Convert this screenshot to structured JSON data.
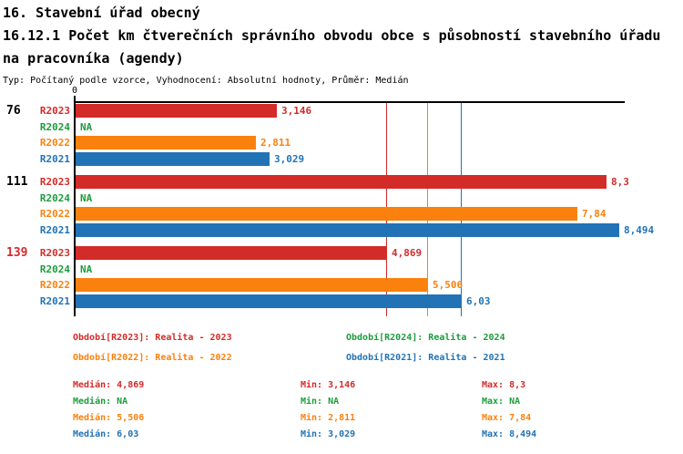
{
  "header": {
    "title_line1": "16. Stavební úřad obecný",
    "title_line2": "16.12.1 Počet km čtverečních správního obvodu obce s působností stavebního úřadu na pracovníka (agendy)",
    "subtitle": "Typ: Počítaný podle vzorce, Vyhodnocení: Absolutní hodnoty, Průměr: Medián"
  },
  "chart_data": {
    "type": "bar",
    "orientation": "horizontal",
    "title": "16.12.1 Počet km čtverečních správního obvodu obce s působností stavebního úřadu na pracovníka (agendy)",
    "x_axis": {
      "zero_label": "0",
      "min": 0,
      "max": 8.58,
      "gridlines": false
    },
    "series_order": [
      "R2023",
      "R2024",
      "R2022",
      "R2021"
    ],
    "series_colors": {
      "R2023": "#d32b28",
      "R2024": "#1c9c3c",
      "R2022": "#fa810e",
      "R2021": "#2273b5"
    },
    "na_text": "NA",
    "groups": [
      {
        "label": "76",
        "label_color": "#000000",
        "bars": [
          {
            "series": "R2023",
            "value": 3.146,
            "display": "3,146"
          },
          {
            "series": "R2024",
            "value": null,
            "display": "NA"
          },
          {
            "series": "R2022",
            "value": 2.811,
            "display": "2,811"
          },
          {
            "series": "R2021",
            "value": 3.029,
            "display": "3,029"
          }
        ]
      },
      {
        "label": "111",
        "label_color": "#000000",
        "bars": [
          {
            "series": "R2023",
            "value": 8.3,
            "display": "8,3"
          },
          {
            "series": "R2024",
            "value": null,
            "display": "NA"
          },
          {
            "series": "R2022",
            "value": 7.84,
            "display": "7,84"
          },
          {
            "series": "R2021",
            "value": 8.494,
            "display": "8,494"
          }
        ]
      },
      {
        "label": "139",
        "label_color": "#d32b28",
        "bars": [
          {
            "series": "R2023",
            "value": 4.869,
            "display": "4,869"
          },
          {
            "series": "R2024",
            "value": null,
            "display": "NA"
          },
          {
            "series": "R2022",
            "value": 5.506,
            "display": "5,506"
          },
          {
            "series": "R2021",
            "value": 6.03,
            "display": "6,03"
          }
        ]
      }
    ],
    "median_lines": [
      {
        "series": "R2023",
        "value": 4.869
      },
      {
        "series": "R2022",
        "value": 5.506
      },
      {
        "series": "R2021",
        "value": 6.03
      }
    ]
  },
  "legend": {
    "items": [
      {
        "series": "R2023",
        "label": "Období[R2023]: Realita - 2023"
      },
      {
        "series": "R2024",
        "label": "Období[R2024]: Realita - 2024"
      },
      {
        "series": "R2022",
        "label": "Období[R2022]: Realita - 2022"
      },
      {
        "series": "R2021",
        "label": "Období[R2021]: Realita - 2021"
      }
    ]
  },
  "stats": {
    "median_label": "Medián",
    "min_label": "Min",
    "max_label": "Max",
    "rows": [
      {
        "series": "R2023",
        "median": "4,869",
        "min": "3,146",
        "max": "8,3"
      },
      {
        "series": "R2024",
        "median": "NA",
        "min": "NA",
        "max": "NA"
      },
      {
        "series": "R2022",
        "median": "5,506",
        "min": "2,811",
        "max": "7,84"
      },
      {
        "series": "R2021",
        "median": "6,03",
        "min": "3,029",
        "max": "8,494"
      }
    ]
  }
}
